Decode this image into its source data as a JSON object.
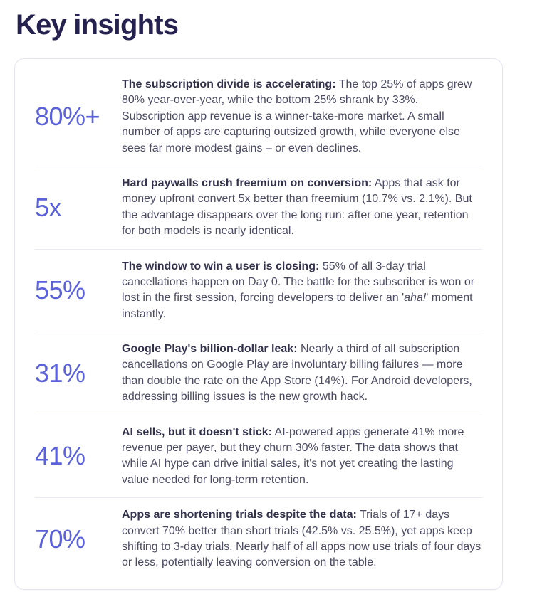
{
  "page": {
    "title": "Key insights"
  },
  "colors": {
    "accent_stat": "#5a61da",
    "title_text": "#262250",
    "bold_text": "#32324c",
    "body_text": "#4a4a63",
    "card_border": "#e4e4f1",
    "row_divider": "#eaeaf4",
    "background": "#ffffff"
  },
  "insights": [
    {
      "stat": "80%+",
      "title": "The subscription divide is accelerating:",
      "body": "The top 25% of apps grew 80% year-over-year, while the bottom 25% shrank by 33%. Subscription app revenue is a winner-take-more market. A small number of apps are capturing outsized growth, while everyone else sees far more modest gains – or even declines."
    },
    {
      "stat": "5x",
      "title": "Hard paywalls crush freemium on conversion:",
      "body": "Apps that ask for money upfront convert 5x better than freemium (10.7% vs. 2.1%). But the advantage disappears over the long run: after one year, retention for both models is nearly identical."
    },
    {
      "stat": "55%",
      "title": "The window to win a user is closing:",
      "body_pre": "55% of all 3-day trial cancellations happen on Day 0. The battle for the subscriber is won or lost in the first session, forcing developers to deliver an '",
      "body_italic": "aha!",
      "body_post": "' moment instantly."
    },
    {
      "stat": "31%",
      "title": "Google Play's billion-dollar leak:",
      "body": "Nearly a third of all subscription cancellations on Google Play are involuntary billing failures — more than double the rate on the App Store (14%). For Android developers, addressing billing issues is the new growth hack."
    },
    {
      "stat": "41%",
      "title": "AI sells, but it doesn't stick:",
      "body": "AI-powered apps generate 41% more revenue per payer, but they churn 30% faster. The data shows that while AI hype can drive initial sales, it's not yet creating the lasting value needed for long-term retention."
    },
    {
      "stat": "70%",
      "title": "Apps are shortening trials despite the data:",
      "body": "Trials of 17+ days convert 70% better than short trials (42.5% vs. 25.5%), yet apps keep shifting to 3-day trials. Nearly half of all apps now use trials of four days or less, potentially leaving conversion on the table."
    }
  ]
}
